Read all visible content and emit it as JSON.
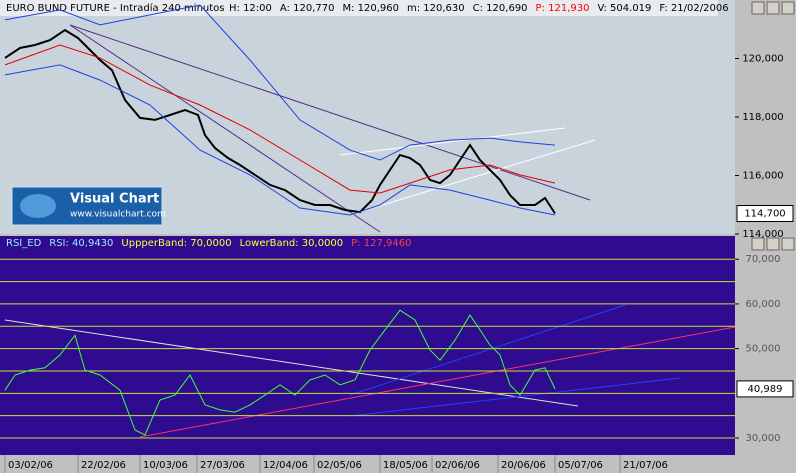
{
  "chart_data": [
    {
      "type": "line",
      "title": "EURO BUND FUTURE - Intradía 240 minutos",
      "info": [
        {
          "text": "H: 12:00",
          "color": "#000000"
        },
        {
          "text": "A: 120,770",
          "color": "#000000"
        },
        {
          "text": "M: 120,960",
          "color": "#000000"
        },
        {
          "text": "m: 120,630",
          "color": "#000000"
        },
        {
          "text": "C: 120,690",
          "color": "#000000"
        },
        {
          "text": "P: 121,930",
          "color": "#ff0000"
        },
        {
          "text": "V: 504.019",
          "color": "#000000"
        },
        {
          "text": "F: 21/02/2006",
          "color": "#000000"
        }
      ],
      "logo": {
        "name": "Visual Chart",
        "url": "www.visualchart.com"
      },
      "xlim": [
        0,
        147
      ],
      "ylim": [
        114,
        122
      ],
      "yticks": [
        {
          "value": 114,
          "label": "114,000"
        },
        {
          "value": 116,
          "label": "116,000"
        },
        {
          "value": 118,
          "label": "118,000"
        },
        {
          "value": 120,
          "label": "120,000"
        }
      ],
      "last_value": {
        "value": 114.7,
        "label": "114,700"
      },
      "series": [
        {
          "name": "Price",
          "color": "#000000",
          "width": 2,
          "x": [
            1,
            4,
            7,
            10,
            13,
            15.6,
            18,
            20,
            22.4,
            25,
            28,
            31,
            34,
            37,
            39.6,
            41,
            43,
            45.6,
            48,
            51,
            54,
            57,
            60,
            63,
            66,
            69,
            72,
            74.4,
            76,
            78,
            80,
            82,
            84,
            86,
            88,
            90,
            92,
            94,
            96,
            98,
            100,
            102,
            104,
            107,
            109,
            111
          ],
          "values": [
            120.02,
            120.36,
            120.46,
            120.63,
            120.97,
            120.7,
            120.29,
            119.95,
            119.6,
            118.58,
            117.97,
            117.9,
            118.07,
            118.24,
            118.07,
            117.38,
            116.94,
            116.6,
            116.36,
            116.02,
            115.68,
            115.5,
            115.16,
            114.99,
            114.99,
            114.82,
            114.75,
            115.16,
            115.68,
            116.19,
            116.7,
            116.6,
            116.36,
            115.85,
            115.74,
            116.02,
            116.53,
            117.04,
            116.53,
            116.19,
            115.85,
            115.33,
            114.99,
            114.99,
            115.23,
            114.7
          ]
        },
        {
          "name": "MA",
          "color": "#e00000",
          "width": 1,
          "x": [
            1,
            12,
            20,
            30,
            40,
            50,
            60,
            70,
            76,
            82,
            90,
            98,
            104,
            111
          ],
          "values": [
            119.78,
            120.46,
            120.02,
            119.09,
            118.41,
            117.56,
            116.53,
            115.5,
            115.4,
            115.74,
            116.19,
            116.36,
            116.02,
            115.74
          ]
        },
        {
          "name": "Upper",
          "color": "#1f3fe0",
          "width": 1,
          "x": [
            1,
            12,
            20,
            30,
            40,
            50,
            60,
            70,
            76,
            82,
            90,
            98,
            104,
            111
          ],
          "values": [
            121.32,
            121.66,
            121.15,
            121.49,
            121.83,
            119.95,
            117.9,
            116.87,
            116.53,
            117.04,
            117.21,
            117.28,
            117.15,
            117.04
          ]
        },
        {
          "name": "Lower",
          "color": "#1f3fe0",
          "width": 1,
          "x": [
            1,
            12,
            20,
            30,
            40,
            50,
            60,
            70,
            76,
            82,
            90,
            98,
            104,
            111
          ],
          "values": [
            119.44,
            119.78,
            119.26,
            118.41,
            116.87,
            116.02,
            114.89,
            114.65,
            114.99,
            115.68,
            115.5,
            115.16,
            114.89,
            114.65
          ]
        }
      ]
    },
    {
      "type": "line",
      "info": [
        {
          "text": "RSI_ED",
          "color": "#9fe8ff"
        },
        {
          "text": "RSI: 40,9430",
          "color": "#9fe8ff"
        },
        {
          "text": "UppperBand: 70,0000",
          "color": "#ffff40"
        },
        {
          "text": "LowerBand: 30,0000",
          "color": "#ffff40"
        },
        {
          "text": "P: 127,9460",
          "color": "#ff4040"
        }
      ],
      "xlim": [
        0,
        147
      ],
      "ylim": [
        26.2,
        75.2
      ],
      "levels": [
        30,
        35,
        40,
        45,
        50,
        55,
        60,
        65,
        70
      ],
      "yticks": [
        {
          "value": 30,
          "label": "30,000"
        },
        {
          "value": 50,
          "label": "50,000"
        },
        {
          "value": 60,
          "label": "60,000"
        },
        {
          "value": 70,
          "label": "70,000"
        }
      ],
      "last_value": {
        "value": 40.989,
        "label": "40,989"
      },
      "xticks": [
        {
          "value": 1,
          "label": "03/02/06"
        },
        {
          "value": 15.6,
          "label": "22/02/06"
        },
        {
          "value": 28,
          "label": "10/03/06"
        },
        {
          "value": 39.4,
          "label": "27/03/06"
        },
        {
          "value": 52,
          "label": "12/04/06"
        },
        {
          "value": 62.8,
          "label": "02/05/06"
        },
        {
          "value": 76,
          "label": "18/05/06"
        },
        {
          "value": 86.4,
          "label": "02/06/06"
        },
        {
          "value": 99.6,
          "label": "20/06/06"
        },
        {
          "value": 111,
          "label": "05/07/06"
        },
        {
          "value": 124,
          "label": "21/07/06"
        }
      ],
      "series": [
        {
          "name": "RSI",
          "color": "#40ff40",
          "width": 1,
          "x": [
            1,
            3,
            6,
            9,
            12,
            15,
            17,
            20,
            24,
            27,
            29,
            32,
            35,
            38,
            41,
            44,
            47,
            50,
            53,
            56,
            59,
            62,
            65,
            68,
            71,
            74,
            77,
            80,
            83,
            86,
            88,
            91,
            94,
            96,
            98,
            100,
            102,
            104,
            107,
            109,
            111
          ],
          "values": [
            40.7,
            44.1,
            45.2,
            45.7,
            48.6,
            53.0,
            45.2,
            44.1,
            40.7,
            31.8,
            30.7,
            38.5,
            39.6,
            44.1,
            37.4,
            36.3,
            35.8,
            37.4,
            39.6,
            41.9,
            39.6,
            43.0,
            44.1,
            41.9,
            43.0,
            49.7,
            54.2,
            58.6,
            56.4,
            49.7,
            47.4,
            51.9,
            57.5,
            54.2,
            50.8,
            48.6,
            41.9,
            39.6,
            45.2,
            45.7,
            40.989
          ]
        }
      ]
    }
  ]
}
